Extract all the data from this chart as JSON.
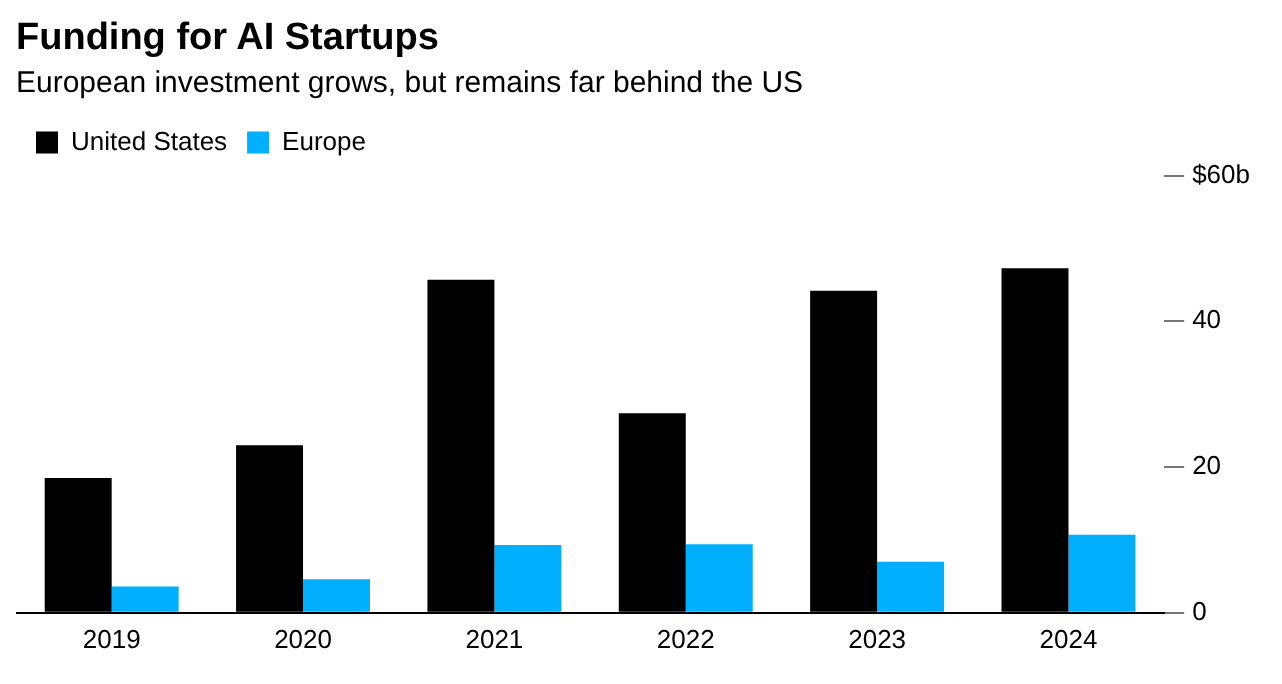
{
  "chart_data": {
    "type": "bar",
    "title": "Funding for AI Startups",
    "subtitle": "European investment grows, but remains far behind the US",
    "categories": [
      "2019",
      "2020",
      "2021",
      "2022",
      "2023",
      "2024"
    ],
    "series": [
      {
        "name": "United States",
        "color": "#000000",
        "values": [
          18.5,
          23.0,
          45.7,
          27.4,
          44.2,
          47.3
        ]
      },
      {
        "name": "Europe",
        "color": "#00b0ff",
        "values": [
          3.6,
          4.6,
          9.3,
          9.4,
          7.0,
          10.7
        ]
      }
    ],
    "ylim": [
      0,
      60
    ],
    "yticks": [
      0,
      20,
      40,
      {
        "value": 60,
        "label": "$60b"
      }
    ],
    "grid": false,
    "legend": "top left"
  }
}
